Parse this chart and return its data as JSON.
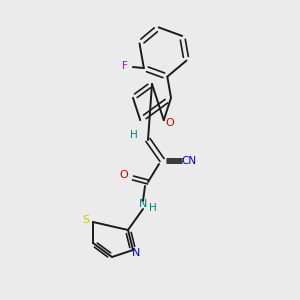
{
  "background_color": "#ebebeb",
  "bond_color": "#1a1a1a",
  "atom_colors": {
    "N": "#0000cc",
    "O": "#cc0000",
    "S": "#cccc00",
    "F": "#cc00cc",
    "CN_label": "#0000cc",
    "H_label": "#008080",
    "NH_label": "#008080"
  },
  "figsize": [
    3.0,
    3.0
  ],
  "dpi": 100
}
